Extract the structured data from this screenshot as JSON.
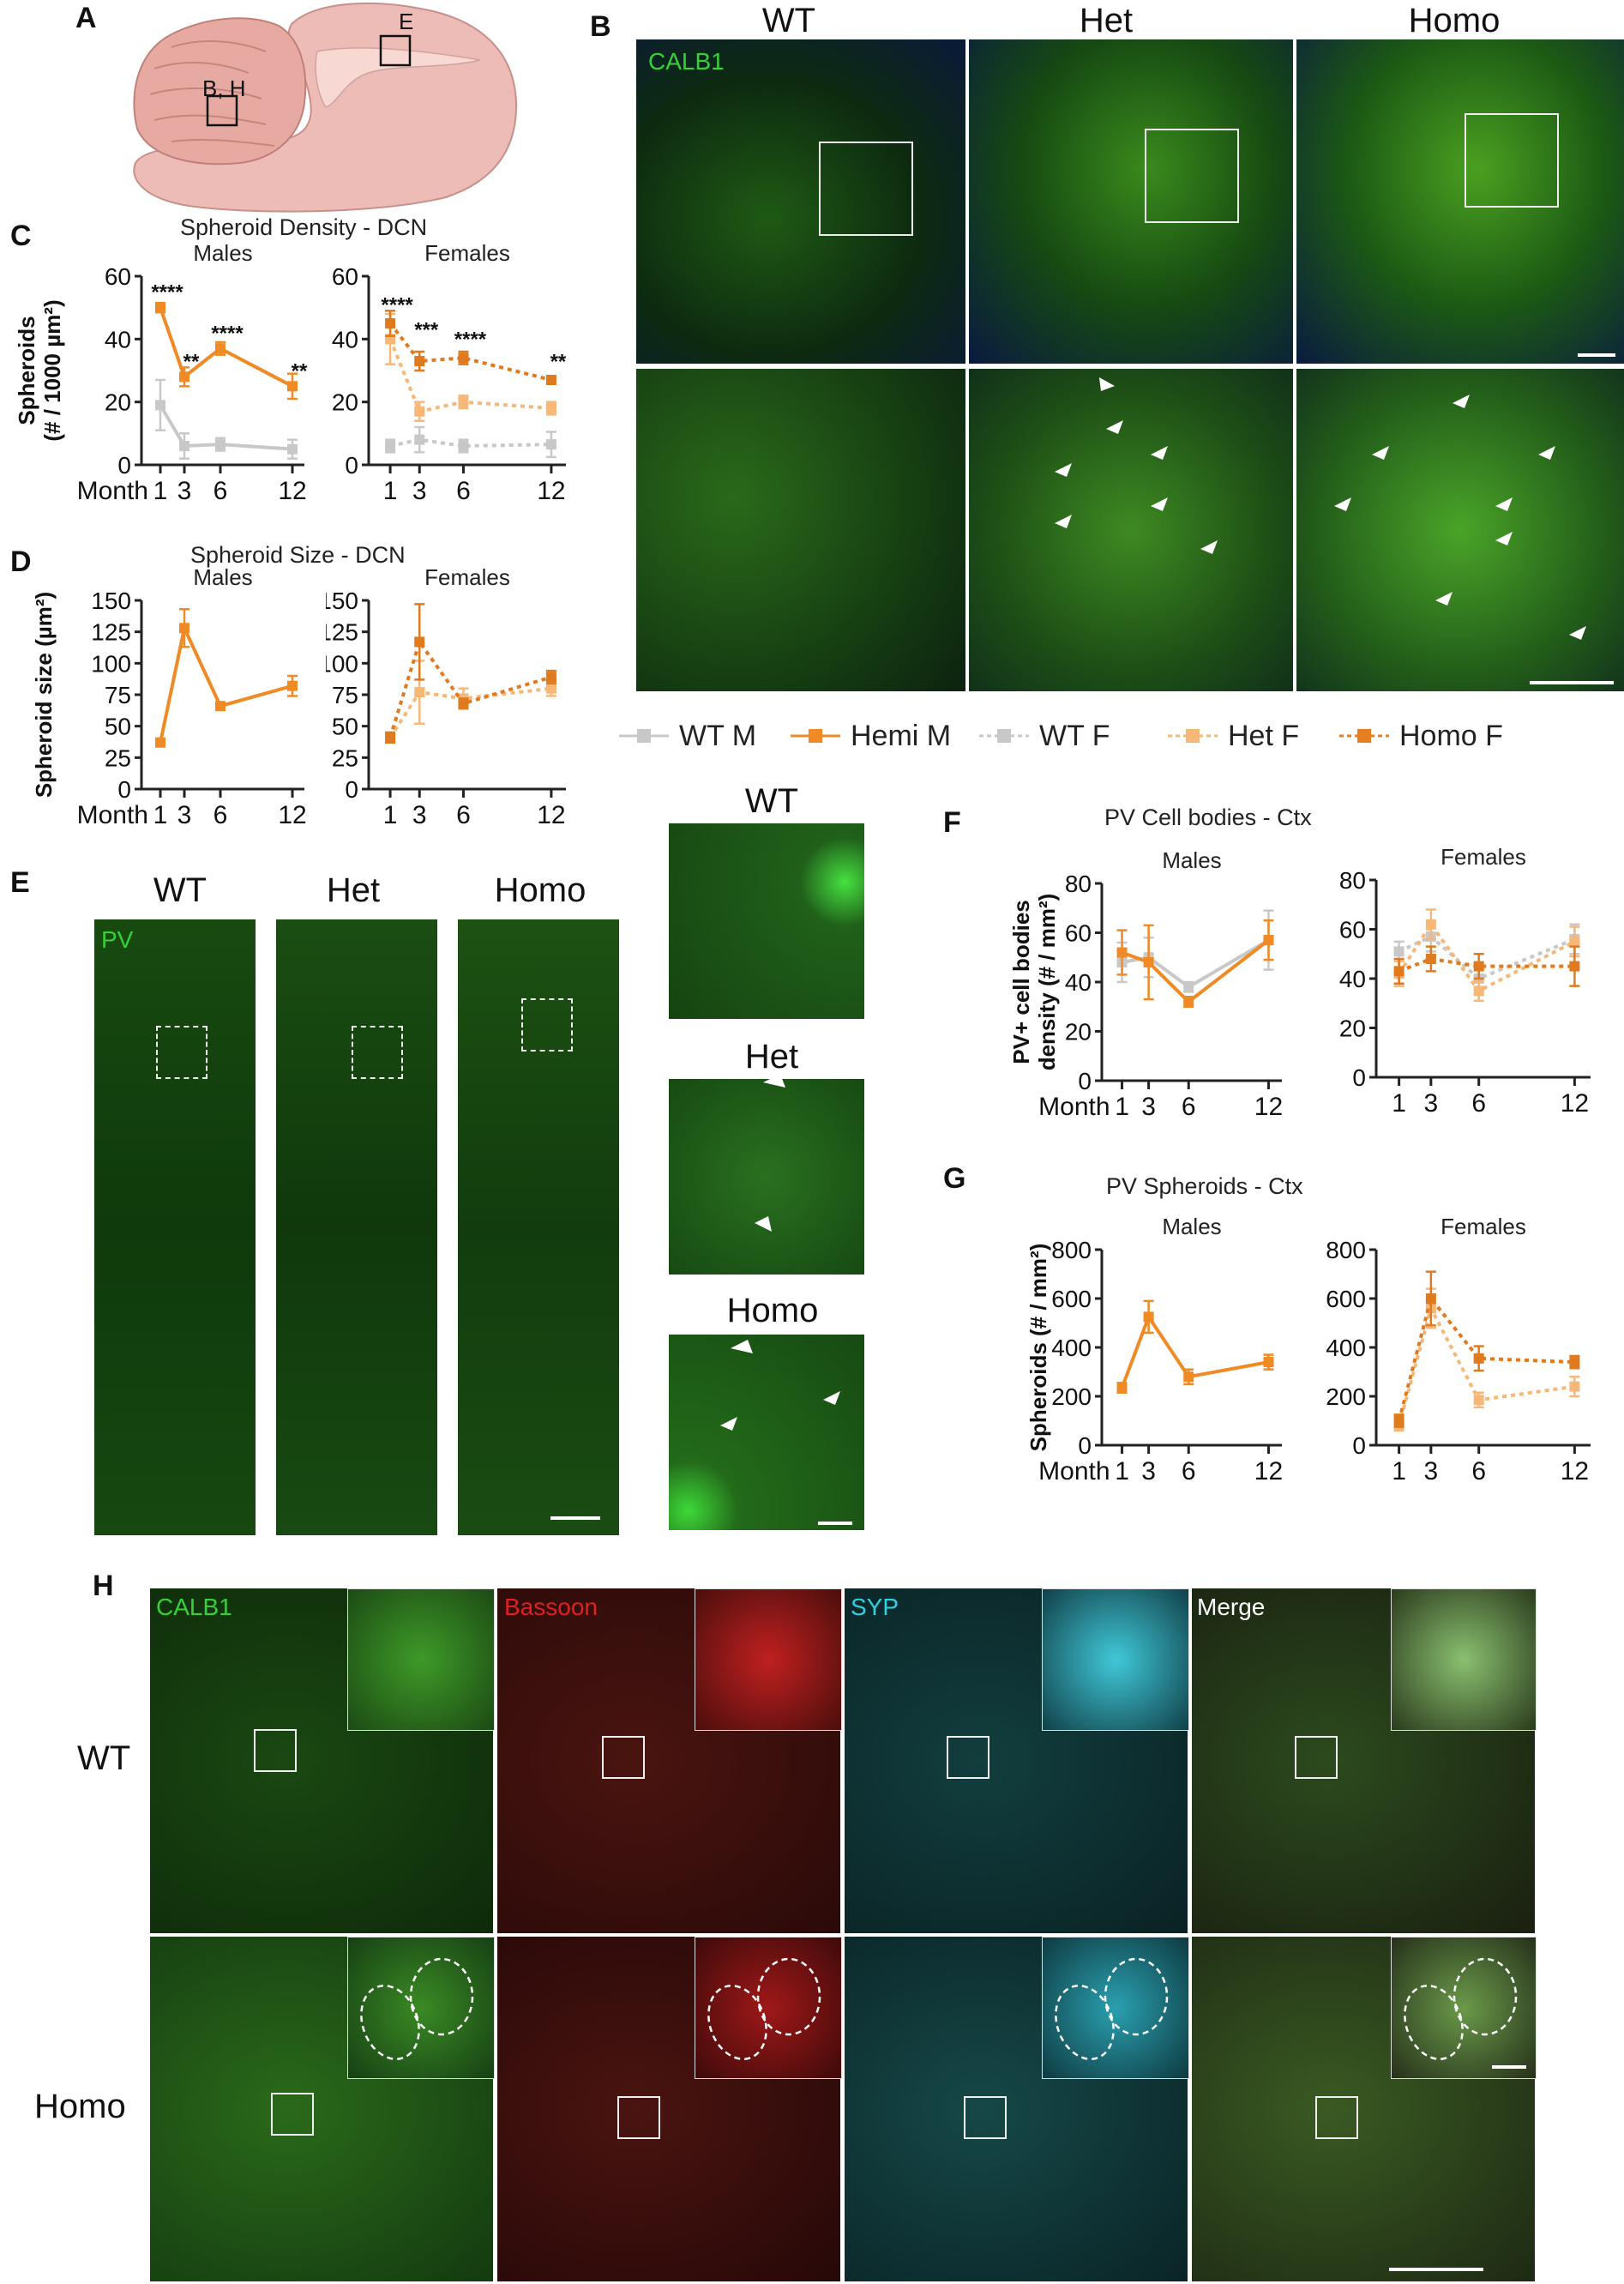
{
  "panel_labels": {
    "A": "A",
    "B": "B",
    "C": "C",
    "D": "D",
    "E": "E",
    "F": "F",
    "G": "G",
    "H": "H"
  },
  "panel_a": {
    "box_e": "E",
    "box_bh": "B, H"
  },
  "panel_b": {
    "cols": [
      "WT",
      "Het",
      "Homo"
    ],
    "channel": "CALB1"
  },
  "panel_c": {
    "title": "Spheroid Density - DCN",
    "males": "Males",
    "females": "Females",
    "ylabel": "Spheroids",
    "ylabel2": "(# / 1000 µm²)",
    "xlabel": "Month"
  },
  "panel_d": {
    "title": "Spheroid Size - DCN",
    "males": "Males",
    "females": "Females",
    "ylabel": "Spheroid size (µm²)",
    "xlabel": "Month"
  },
  "panel_e": {
    "cols": [
      "WT",
      "Het",
      "Homo"
    ],
    "channel": "PV",
    "zooms": [
      "WT",
      "Het",
      "Homo"
    ]
  },
  "panel_f": {
    "title": "PV Cell bodies - Ctx",
    "males": "Males",
    "females": "Females",
    "ylabel": "PV+ cell bodies",
    "ylabel2": "density (# / mm²)",
    "xlabel": "Month"
  },
  "panel_g": {
    "title": "PV Spheroids - Ctx",
    "males": "Males",
    "females": "Females",
    "ylabel": "Spheroids (# / mm²)",
    "xlabel": "Month"
  },
  "panel_h": {
    "channels": [
      "CALB1",
      "Bassoon",
      "SYP",
      "Merge"
    ],
    "rows": [
      "WT",
      "Homo"
    ]
  },
  "legend": [
    {
      "label": "WT M",
      "color": "#c8c8c8",
      "dashed": false
    },
    {
      "label": "Hemi M",
      "color": "#f08a24",
      "dashed": false
    },
    {
      "label": "WT F",
      "color": "#c8c8c8",
      "dashed": true
    },
    {
      "label": "Het F",
      "color": "#f7b777",
      "dashed": true
    },
    {
      "label": "Homo F",
      "color": "#e67e22",
      "dashed": true
    }
  ],
  "colors": {
    "wt": "#c8c8c8",
    "hemi": "#f08a24",
    "het": "#f7b777",
    "homo": "#e07a1f"
  },
  "chart_data": [
    {
      "id": "C-males",
      "type": "line",
      "x": [
        1,
        3,
        6,
        12
      ],
      "ylim": [
        0,
        60
      ],
      "yticks": [
        0,
        20,
        40,
        60
      ],
      "xticks": [
        "1",
        "3",
        "6",
        "12"
      ],
      "series": [
        {
          "name": "WT M",
          "values": [
            19,
            6,
            6.5,
            5
          ],
          "err": [
            8,
            4,
            2,
            3
          ],
          "style": "wt"
        },
        {
          "name": "Hemi M",
          "values": [
            50,
            28,
            37,
            25
          ],
          "err": [
            1.5,
            3,
            2,
            4
          ],
          "style": "hemi"
        }
      ],
      "annotations": [
        {
          "x": 1,
          "y": 50,
          "text": "****"
        },
        {
          "x": 3,
          "y": 28,
          "text": "**"
        },
        {
          "x": 6,
          "y": 37,
          "text": "****"
        },
        {
          "x": 12,
          "y": 25,
          "text": "**"
        }
      ]
    },
    {
      "id": "C-females",
      "type": "line",
      "x": [
        1,
        3,
        6,
        12
      ],
      "ylim": [
        0,
        60
      ],
      "yticks": [
        0,
        20,
        40,
        60
      ],
      "xticks": [
        "1",
        "3",
        "6",
        "12"
      ],
      "series": [
        {
          "name": "WT F",
          "values": [
            6,
            8,
            6,
            6.5
          ],
          "err": [
            2,
            4,
            2,
            4
          ],
          "style": "wtf"
        },
        {
          "name": "Het F",
          "values": [
            40,
            17,
            20,
            18
          ],
          "err": [
            8,
            3,
            2,
            2
          ],
          "style": "het"
        },
        {
          "name": "Homo F",
          "values": [
            45,
            33,
            34,
            27
          ],
          "err": [
            4,
            3,
            2,
            1
          ],
          "style": "homo"
        }
      ],
      "annotations": [
        {
          "x": 1,
          "y": 46,
          "text": "****"
        },
        {
          "x": 3,
          "y": 38,
          "text": "***"
        },
        {
          "x": 6,
          "y": 35,
          "text": "****"
        },
        {
          "x": 12,
          "y": 28,
          "text": "**"
        }
      ]
    },
    {
      "id": "D-males",
      "type": "line",
      "x": [
        1,
        3,
        6,
        12
      ],
      "ylim": [
        0,
        150
      ],
      "yticks": [
        0,
        25,
        50,
        75,
        100,
        125,
        150
      ],
      "xticks": [
        "1",
        "3",
        "6",
        "12"
      ],
      "series": [
        {
          "name": "Hemi M",
          "values": [
            37,
            128,
            66,
            82
          ],
          "err": [
            0,
            15,
            3,
            8
          ],
          "style": "hemi"
        }
      ]
    },
    {
      "id": "D-females",
      "type": "line",
      "x": [
        1,
        3,
        6,
        12
      ],
      "ylim": [
        0,
        150
      ],
      "yticks": [
        0,
        25,
        50,
        75,
        100,
        125,
        150
      ],
      "xticks": [
        "1",
        "3",
        "6",
        "12"
      ],
      "series": [
        {
          "name": "Het F",
          "values": [
            41,
            77,
            72,
            80
          ],
          "err": [
            4,
            25,
            8,
            6
          ],
          "style": "het"
        },
        {
          "name": "Homo F",
          "values": [
            41,
            117,
            68,
            89
          ],
          "err": [
            4,
            30,
            4,
            5
          ],
          "style": "homo"
        }
      ]
    },
    {
      "id": "F-males",
      "type": "line",
      "x": [
        1,
        3,
        6,
        12
      ],
      "ylim": [
        0,
        80
      ],
      "yticks": [
        0,
        20,
        40,
        60,
        80
      ],
      "xticks": [
        "1",
        "3",
        "6",
        "12"
      ],
      "series": [
        {
          "name": "WT M",
          "values": [
            48,
            50,
            38,
            57
          ],
          "err": [
            8,
            8,
            2,
            12
          ],
          "style": "wt"
        },
        {
          "name": "Hemi M",
          "values": [
            52,
            48,
            32,
            57
          ],
          "err": [
            9,
            15,
            2,
            8
          ],
          "style": "hemi"
        }
      ]
    },
    {
      "id": "F-females",
      "type": "line",
      "x": [
        1,
        3,
        6,
        12
      ],
      "ylim": [
        0,
        80
      ],
      "yticks": [
        0,
        20,
        40,
        60,
        80
      ],
      "xticks": [
        "1",
        "3",
        "6",
        "12"
      ],
      "series": [
        {
          "name": "WT F",
          "values": [
            51,
            57,
            40,
            56
          ],
          "err": [
            4,
            6,
            5,
            6
          ],
          "style": "wtf"
        },
        {
          "name": "Het F",
          "values": [
            42,
            62,
            35,
            55
          ],
          "err": [
            5,
            6,
            4,
            6
          ],
          "style": "het"
        },
        {
          "name": "Homo F",
          "values": [
            43,
            48,
            45,
            45
          ],
          "err": [
            5,
            5,
            5,
            8
          ],
          "style": "homo"
        }
      ]
    },
    {
      "id": "G-males",
      "type": "line",
      "x": [
        1,
        3,
        6,
        12
      ],
      "ylim": [
        0,
        800
      ],
      "yticks": [
        0,
        200,
        400,
        600,
        800
      ],
      "xticks": [
        "1",
        "3",
        "6",
        "12"
      ],
      "series": [
        {
          "name": "Hemi M",
          "values": [
            235,
            525,
            280,
            340
          ],
          "err": [
            20,
            65,
            30,
            30
          ],
          "style": "hemi"
        }
      ]
    },
    {
      "id": "G-females",
      "type": "line",
      "x": [
        1,
        3,
        6,
        12
      ],
      "ylim": [
        0,
        800
      ],
      "yticks": [
        0,
        200,
        400,
        600,
        800
      ],
      "xticks": [
        "1",
        "3",
        "6",
        "12"
      ],
      "series": [
        {
          "name": "Het F",
          "values": [
            80,
            560,
            185,
            240
          ],
          "err": [
            20,
            80,
            30,
            40
          ],
          "style": "het"
        },
        {
          "name": "Homo F",
          "values": [
            100,
            600,
            355,
            340
          ],
          "err": [
            25,
            110,
            50,
            25
          ],
          "style": "homo"
        }
      ]
    }
  ]
}
